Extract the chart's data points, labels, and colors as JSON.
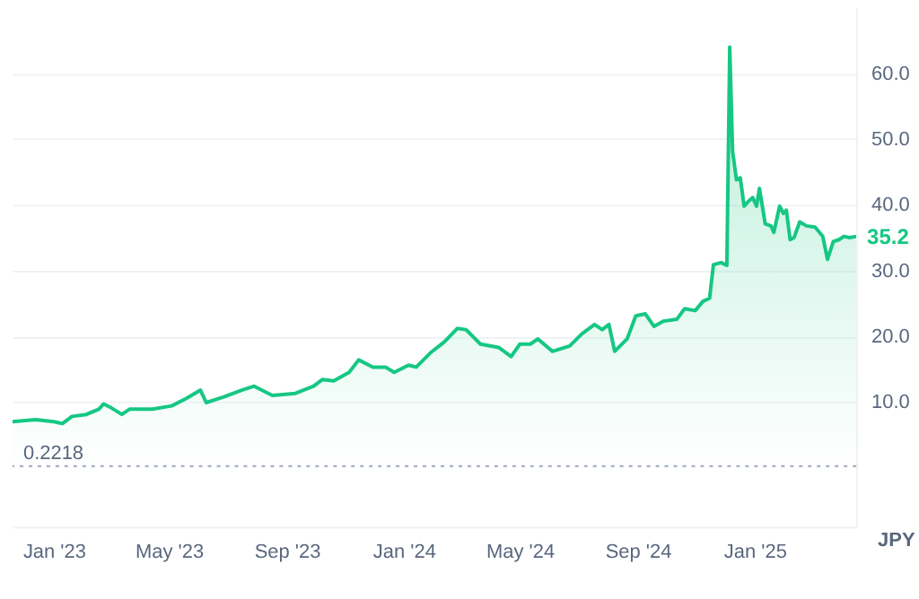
{
  "chart_data": {
    "type": "area",
    "x": [
      "2022-11-19",
      "2022-12-13",
      "2023-01-01",
      "2023-01-10",
      "2023-01-20",
      "2023-02-04",
      "2023-02-17",
      "2023-02-22",
      "2023-03-02",
      "2023-03-13",
      "2023-03-21",
      "2023-04-14",
      "2023-05-04",
      "2023-05-19",
      "2023-06-03",
      "2023-06-09",
      "2023-06-28",
      "2023-07-16",
      "2023-07-29",
      "2023-08-17",
      "2023-09-10",
      "2023-09-29",
      "2023-10-08",
      "2023-10-20",
      "2023-11-05",
      "2023-11-15",
      "2023-11-30",
      "2023-12-13",
      "2023-12-22",
      "2024-01-06",
      "2024-01-14",
      "2024-01-29",
      "2024-02-12",
      "2024-02-26",
      "2024-03-06",
      "2024-03-21",
      "2024-04-09",
      "2024-04-22",
      "2024-05-01",
      "2024-05-12",
      "2024-05-20",
      "2024-06-04",
      "2024-06-22",
      "2024-07-05",
      "2024-07-18",
      "2024-07-26",
      "2024-08-02",
      "2024-08-08",
      "2024-08-21",
      "2024-08-30",
      "2024-09-09",
      "2024-09-18",
      "2024-09-28",
      "2024-10-12",
      "2024-10-20",
      "2024-10-31",
      "2024-11-08",
      "2024-11-15",
      "2024-11-19",
      "2024-11-27",
      "2024-12-03",
      "2024-12-06",
      "2024-12-09",
      "2024-12-13",
      "2024-12-17",
      "2024-12-21",
      "2024-12-26",
      "2024-12-30",
      "2025-01-03",
      "2025-01-06",
      "2025-01-12",
      "2025-01-18",
      "2025-01-21",
      "2025-01-27",
      "2025-01-31",
      "2025-02-03",
      "2025-02-07",
      "2025-02-11",
      "2025-02-17",
      "2025-02-24",
      "2025-03-05",
      "2025-03-13",
      "2025-03-18",
      "2025-03-24",
      "2025-03-30",
      "2025-04-04",
      "2025-04-10",
      "2025-04-17"
    ],
    "series": [
      {
        "color": "#16c784",
        "values": [
          7.0,
          7.3,
          7.0,
          6.7,
          7.8,
          8.1,
          8.9,
          9.7,
          9.1,
          8.1,
          8.9,
          8.9,
          9.4,
          10.5,
          11.8,
          9.9,
          10.8,
          11.8,
          12.4,
          11.0,
          11.3,
          12.4,
          13.4,
          13.2,
          14.5,
          16.4,
          15.3,
          15.3,
          14.5,
          15.6,
          15.3,
          17.5,
          19.1,
          21.2,
          21.0,
          18.8,
          18.3,
          16.9,
          18.8,
          18.8,
          19.6,
          17.7,
          18.5,
          20.4,
          21.8,
          21.0,
          21.8,
          17.7,
          19.6,
          23.1,
          23.4,
          21.5,
          22.3,
          22.6,
          24.2,
          23.9,
          25.3,
          25.8,
          30.9,
          31.2,
          30.8,
          64.0,
          48.1,
          43.8,
          44.1,
          39.8,
          40.6,
          41.1,
          39.8,
          42.5,
          37.1,
          36.8,
          35.8,
          39.8,
          38.7,
          39.2,
          34.7,
          35.0,
          37.4,
          36.8,
          36.6,
          35.2,
          31.7,
          34.4,
          34.7,
          35.2,
          35.0,
          35.2
        ]
      }
    ],
    "xlim": [
      "2022-11-19",
      "2025-04-17"
    ],
    "xticks": [
      {
        "value": "2023-01-01",
        "label": "Jan '23"
      },
      {
        "value": "2023-05-01",
        "label": "May '23"
      },
      {
        "value": "2023-09-01",
        "label": "Sep '23"
      },
      {
        "value": "2024-01-01",
        "label": "Jan '24"
      },
      {
        "value": "2024-05-01",
        "label": "May '24"
      },
      {
        "value": "2024-09-01",
        "label": "Sep '24"
      },
      {
        "value": "2025-01-01",
        "label": "Jan '25"
      }
    ],
    "ylim": [
      -9,
      70
    ],
    "yticks": [
      {
        "value": 10,
        "label": "10.0"
      },
      {
        "value": 20,
        "label": "20.0"
      },
      {
        "value": 30,
        "label": "30.0"
      },
      {
        "value": 40,
        "label": "40.0"
      },
      {
        "value": 50,
        "label": "50.0"
      },
      {
        "value": 60,
        "label": "60.0"
      }
    ],
    "ref_lines": [
      {
        "axis": "y",
        "value": 0.2218,
        "label": "0.2218",
        "color": "#a6b0c3",
        "line_style": "dotted"
      }
    ],
    "annotations": [
      {
        "text": "35.2",
        "x": "2025-04-17",
        "y": 35.2
      },
      "JPY"
    ],
    "grid": "y",
    "legend": false
  }
}
